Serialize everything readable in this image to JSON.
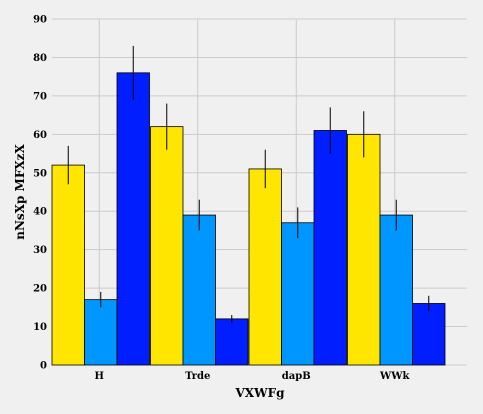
{
  "chart_data": {
    "type": "bar",
    "xlabel": "VXWFg",
    "ylabel": "nNsXp MFXzX",
    "categories": [
      "H",
      "Trde",
      "dapB",
      "WWk"
    ],
    "ylim": [
      0,
      90
    ],
    "yticks": [
      0,
      10,
      20,
      30,
      40,
      50,
      60,
      70,
      80,
      90
    ],
    "grid": true,
    "series": [
      {
        "color": "#ffe600",
        "values": [
          52,
          62,
          51,
          60
        ],
        "errors": [
          5,
          6,
          5,
          6
        ]
      },
      {
        "color": "#0096ff",
        "values": [
          17,
          39,
          37,
          39
        ],
        "errors": [
          2,
          4,
          4,
          4
        ]
      },
      {
        "color": "#001eff",
        "values": [
          76,
          12,
          61,
          16
        ],
        "errors": [
          7,
          1,
          6,
          2
        ]
      }
    ]
  }
}
